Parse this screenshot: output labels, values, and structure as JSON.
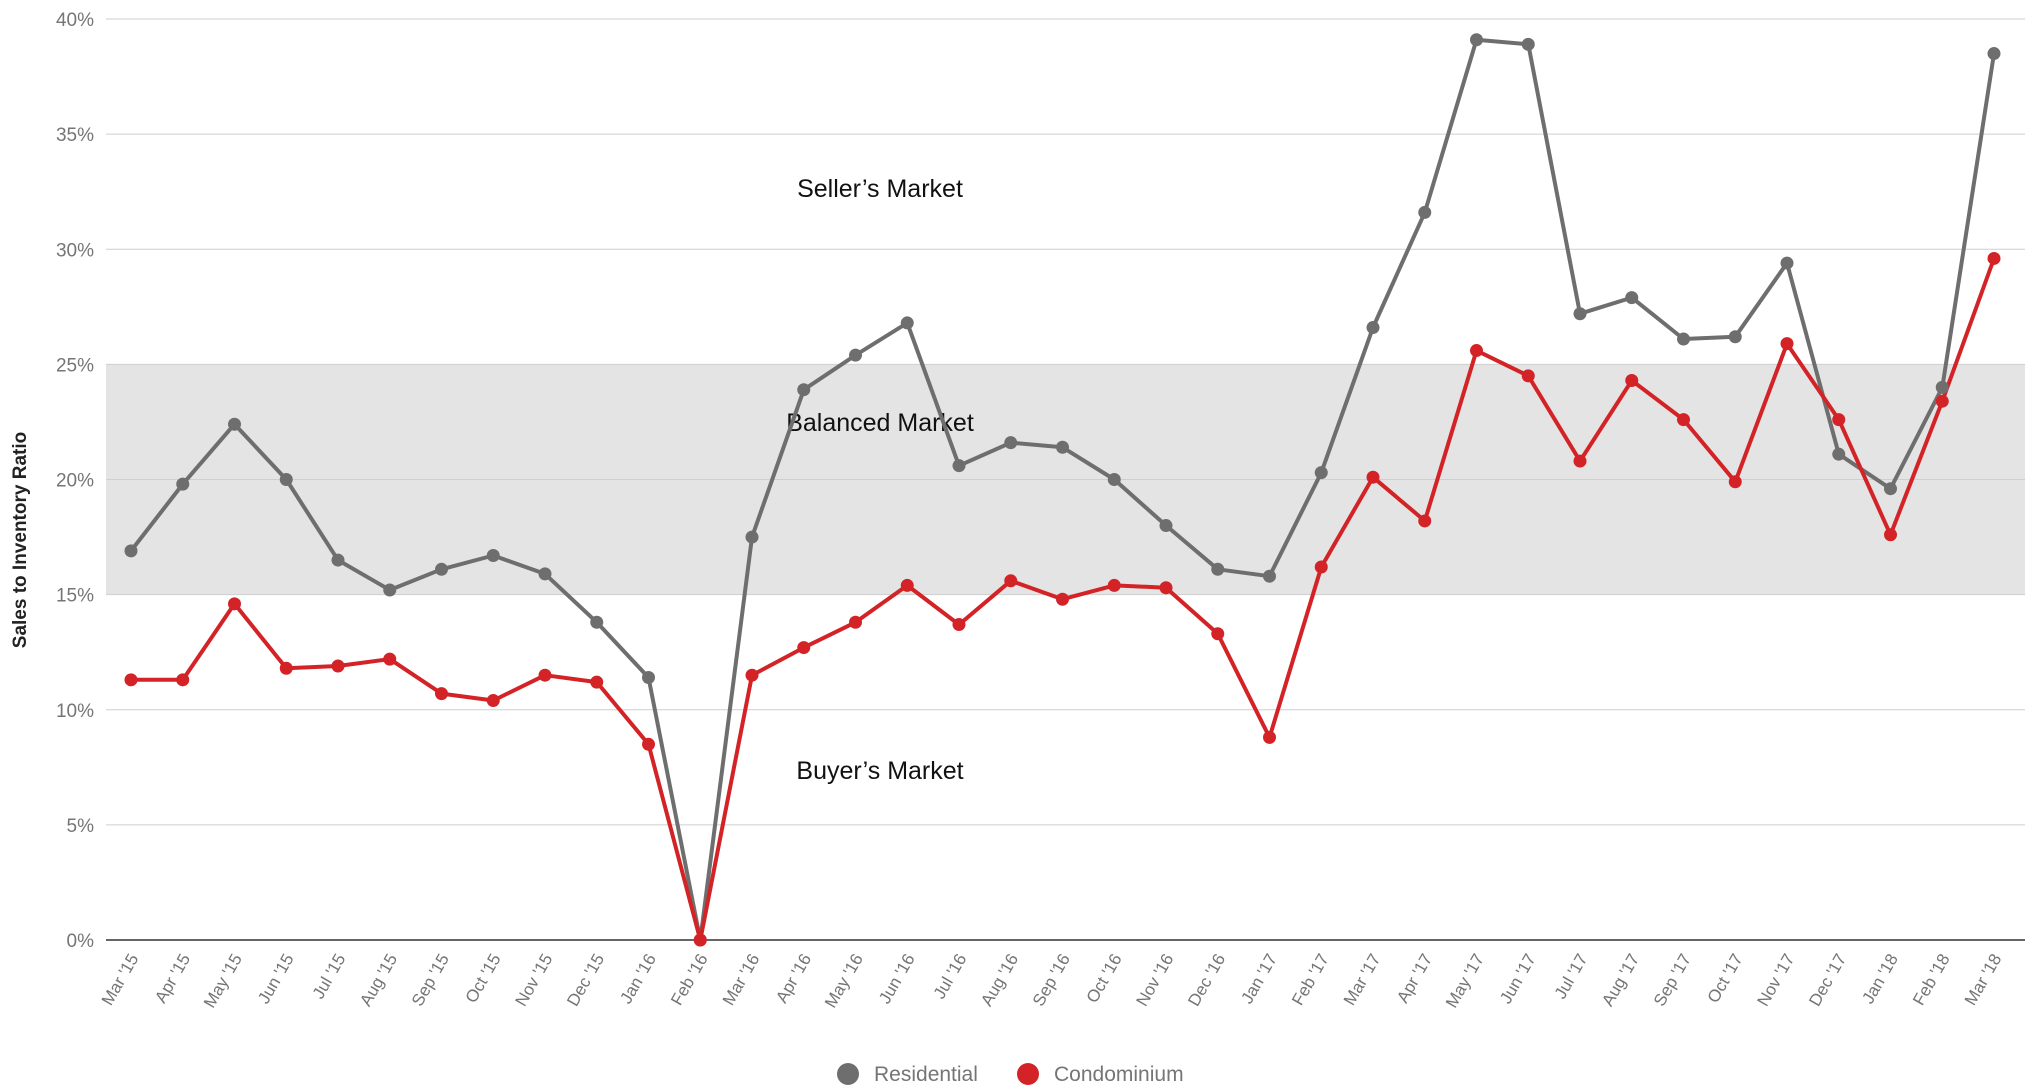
{
  "chart_data": {
    "type": "line",
    "title": "",
    "xlabel": "",
    "ylabel": "Sales to Inventory Ratio",
    "ylim": [
      0,
      40
    ],
    "yticks": [
      0,
      5,
      10,
      15,
      20,
      25,
      30,
      35,
      40
    ],
    "ytick_labels": [
      "0%",
      "5%",
      "10%",
      "15%",
      "20%",
      "25%",
      "30%",
      "35%",
      "40%"
    ],
    "grid": true,
    "legend_position": "bottom",
    "categories": [
      "Mar '15",
      "Apr '15",
      "May '15",
      "Jun '15",
      "Jul '15",
      "Aug '15",
      "Sep '15",
      "Oct '15",
      "Nov '15",
      "Dec '15",
      "Jan '16",
      "Feb '16",
      "Mar '16",
      "Apr '16",
      "May '16",
      "Jun '16",
      "Jul '16",
      "Aug '16",
      "Sep '16",
      "Oct '16",
      "Nov '16",
      "Dec '16",
      "Jan '17",
      "Feb '17",
      "Mar '17",
      "Apr '17",
      "May '17",
      "Jun '17",
      "Jul '17",
      "Aug '17",
      "Sep '17",
      "Oct '17",
      "Nov '17",
      "Dec '17",
      "Jan '18",
      "Feb '18",
      "Mar '18"
    ],
    "series": [
      {
        "name": "Residential",
        "color": "#6e6e6e",
        "values": [
          16.9,
          19.8,
          22.4,
          20.0,
          16.5,
          15.2,
          16.1,
          16.7,
          15.9,
          13.8,
          11.4,
          0.0,
          17.5,
          23.9,
          25.4,
          26.8,
          20.6,
          21.6,
          21.4,
          20.0,
          18.0,
          16.1,
          15.8,
          20.3,
          26.6,
          31.6,
          39.1,
          38.9,
          27.2,
          27.9,
          26.1,
          26.2,
          29.4,
          21.1,
          19.6,
          24.0,
          38.5
        ]
      },
      {
        "name": "Condominium",
        "color": "#d32327",
        "values": [
          11.3,
          11.3,
          14.6,
          11.8,
          11.9,
          12.2,
          10.7,
          10.4,
          11.5,
          11.2,
          8.5,
          0.0,
          11.5,
          12.7,
          13.8,
          15.4,
          13.7,
          15.6,
          14.8,
          15.4,
          15.3,
          13.3,
          8.8,
          16.2,
          20.1,
          18.2,
          25.6,
          24.5,
          20.8,
          24.3,
          22.6,
          19.9,
          25.9,
          22.6,
          17.6,
          23.4,
          29.6
        ]
      }
    ],
    "bands": [
      {
        "label": "Seller’s Market",
        "from": 25,
        "to": 40,
        "color": "#ffffff"
      },
      {
        "label": "Balanced Market",
        "from": 15,
        "to": 25,
        "color": "#e4e4e4"
      },
      {
        "label": "Buyer’s Market",
        "from": 0,
        "to": 15,
        "color": "#ffffff"
      }
    ]
  }
}
